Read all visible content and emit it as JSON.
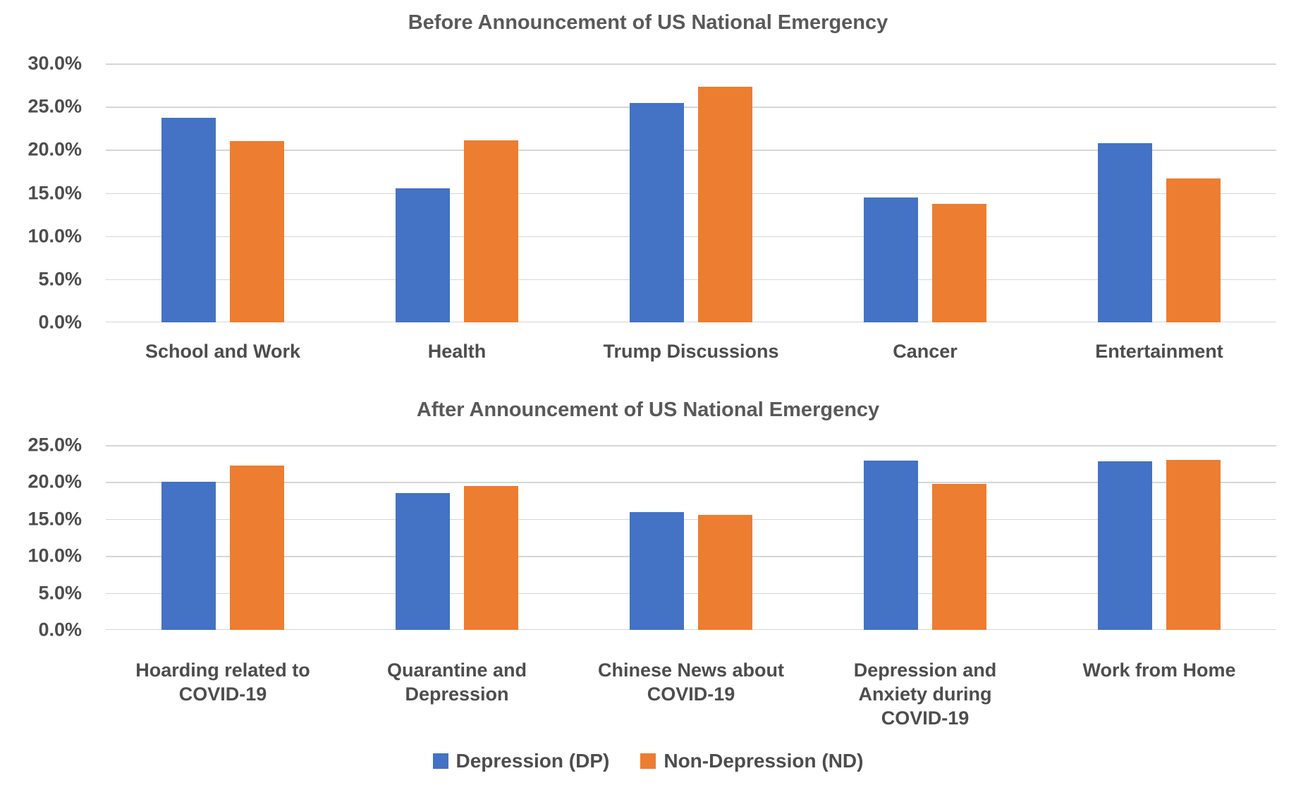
{
  "chart_data": [
    {
      "type": "bar",
      "title": "Before Announcement of US National Emergency",
      "ylim": [
        0,
        30
      ],
      "ytick_step": 5,
      "yticks": [
        "0.0%",
        "5.0%",
        "10.0%",
        "15.0%",
        "20.0%",
        "25.0%",
        "30.0%"
      ],
      "grid": true,
      "categories": [
        "School and Work",
        "Health",
        "Trump Discussions",
        "Cancer",
        "Entertainment"
      ],
      "series": [
        {
          "name": "Depression (DP)",
          "color": "#4472C4",
          "values": [
            23.7,
            15.5,
            25.4,
            14.5,
            20.8
          ]
        },
        {
          "name": "Non-Depression (ND)",
          "color": "#ED7D31",
          "values": [
            21.0,
            21.1,
            27.3,
            13.7,
            16.7
          ]
        }
      ]
    },
    {
      "type": "bar",
      "title": "After Announcement of US National Emergency",
      "ylim": [
        0,
        25
      ],
      "ytick_step": 5,
      "yticks": [
        "0.0%",
        "5.0%",
        "10.0%",
        "15.0%",
        "20.0%",
        "25.0%"
      ],
      "grid": true,
      "categories": [
        "Hoarding related to COVID-19",
        "Quarantine and Depression",
        "Chinese News about COVID-19",
        "Depression and Anxiety during COVID-19",
        "Work from Home"
      ],
      "series": [
        {
          "name": "Depression (DP)",
          "color": "#4472C4",
          "values": [
            20.0,
            18.5,
            15.9,
            22.9,
            22.8
          ]
        },
        {
          "name": "Non-Depression (ND)",
          "color": "#ED7D31",
          "values": [
            22.2,
            19.5,
            15.6,
            19.8,
            23.0
          ]
        }
      ]
    }
  ],
  "legend": {
    "position": "bottom-center",
    "items": [
      {
        "label": "Depression (DP)",
        "color": "#4472C4"
      },
      {
        "label": "Non-Depression (ND)",
        "color": "#ED7D31"
      }
    ]
  },
  "colors": {
    "depression_blue": "#4472C4",
    "non_depression_orange": "#ED7D31",
    "gridline_gray": "#D6D6D6",
    "title_gray": "#595959",
    "label_gray": "#4D4D4D"
  }
}
